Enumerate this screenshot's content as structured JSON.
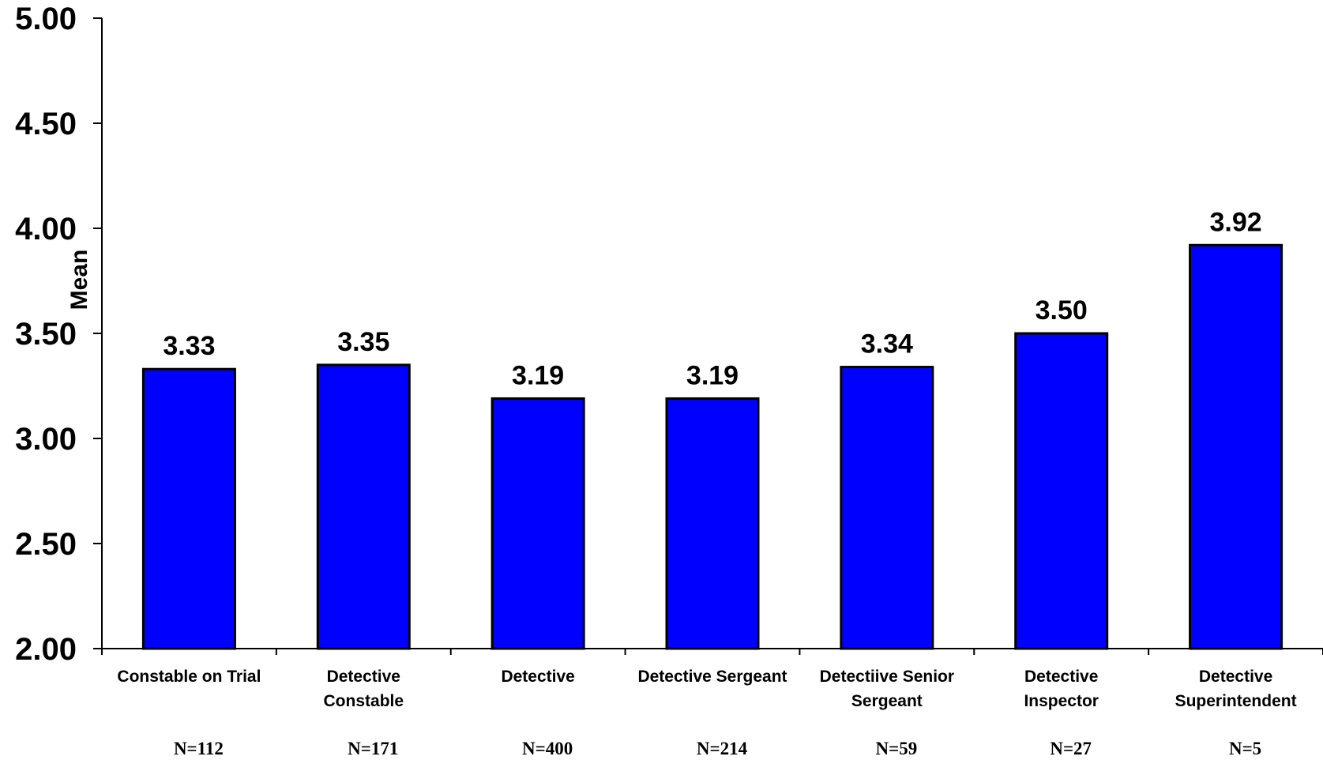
{
  "chart_data": {
    "type": "bar",
    "title": "",
    "xlabel": "",
    "ylabel": "Mean",
    "ylim": [
      2.0,
      5.0
    ],
    "yticks": [
      "2.00",
      "2.50",
      "3.00",
      "3.50",
      "4.00",
      "4.50",
      "5.00"
    ],
    "categories": [
      [
        "Constable on Trial"
      ],
      [
        "Detective",
        "Constable"
      ],
      [
        "Detective"
      ],
      [
        "Detective Sergeant"
      ],
      [
        "Detectiive Senior",
        "Sergeant"
      ],
      [
        "Detective",
        "Inspector"
      ],
      [
        "Detective",
        "Superintendent"
      ]
    ],
    "values": [
      3.33,
      3.35,
      3.19,
      3.19,
      3.34,
      3.5,
      3.92
    ],
    "value_labels": [
      "3.33",
      "3.35",
      "3.19",
      "3.19",
      "3.34",
      "3.50",
      "3.92"
    ],
    "sample_sizes": [
      "N=112",
      "N=171",
      "N=400",
      "N=214",
      "N=59",
      "N=27",
      "N=5"
    ],
    "grid": false,
    "legend": "none",
    "bar_color": "#0000FF",
    "bar_edge_color": "#000000"
  }
}
